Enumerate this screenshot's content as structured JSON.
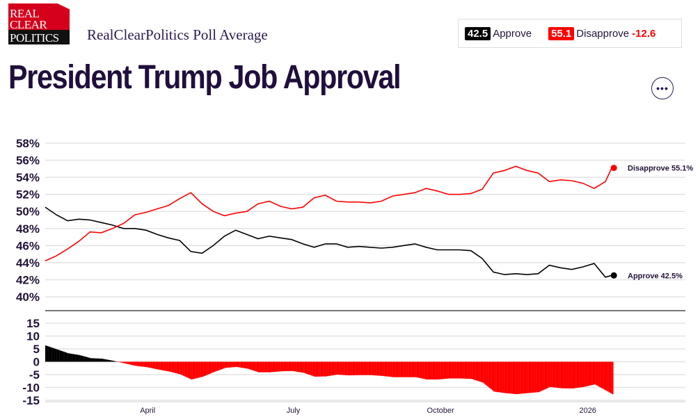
{
  "header": {
    "logo_text": [
      "REAL",
      "CLEAR",
      "POLITICS"
    ],
    "subtitle": "RealClearPolitics Poll Average",
    "title": "President Trump Job Approval",
    "more_button": "•••"
  },
  "legend": {
    "approve_value": "42.5",
    "approve_label": "Approve",
    "disapprove_value": "55.1",
    "disapprove_label": "Disapprove",
    "spread": "-12.6"
  },
  "colors": {
    "approve": "#000000",
    "disapprove": "#ff0000",
    "text": "#221338"
  },
  "chart_data": [
    {
      "type": "line",
      "ylim": [
        40,
        58
      ],
      "yticks": [
        "58%",
        "56%",
        "54%",
        "52%",
        "50%",
        "48%",
        "46%",
        "44%",
        "42%",
        "40%"
      ],
      "ytick_values": [
        58,
        56,
        54,
        52,
        50,
        48,
        46,
        44,
        42,
        40
      ],
      "grid": true,
      "x": [
        "2025-01-27",
        "2025-02-03",
        "2025-02-10",
        "2025-02-17",
        "2025-02-24",
        "2025-03-03",
        "2025-03-10",
        "2025-03-17",
        "2025-03-24",
        "2025-03-31",
        "2025-04-07",
        "2025-04-14",
        "2025-04-21",
        "2025-04-28",
        "2025-05-05",
        "2025-05-12",
        "2025-05-19",
        "2025-05-26",
        "2025-06-02",
        "2025-06-09",
        "2025-06-16",
        "2025-06-23",
        "2025-06-30",
        "2025-07-07",
        "2025-07-14",
        "2025-07-21",
        "2025-07-28",
        "2025-08-04",
        "2025-08-11",
        "2025-08-18",
        "2025-08-25",
        "2025-09-01",
        "2025-09-08",
        "2025-09-15",
        "2025-09-22",
        "2025-09-29",
        "2025-10-06",
        "2025-10-13",
        "2025-10-20",
        "2025-10-27",
        "2025-11-03",
        "2025-11-10",
        "2025-11-17",
        "2025-11-24",
        "2025-12-01",
        "2025-12-08",
        "2025-12-15",
        "2025-12-22",
        "2025-12-29",
        "2026-01-05",
        "2026-01-12",
        "2026-01-16"
      ],
      "series": [
        {
          "name": "Approve",
          "end_label": "Approve 42.5%",
          "color": "#000000",
          "values": [
            50.5,
            49.6,
            48.9,
            49.1,
            49.0,
            48.7,
            48.4,
            48.0,
            48.0,
            47.8,
            47.3,
            46.9,
            46.6,
            45.3,
            45.1,
            46.0,
            47.1,
            47.8,
            47.3,
            46.8,
            47.1,
            46.9,
            46.7,
            46.2,
            45.8,
            46.2,
            46.2,
            45.8,
            45.9,
            45.8,
            45.7,
            45.8,
            46.0,
            46.2,
            45.8,
            45.5,
            45.5,
            45.5,
            45.4,
            44.5,
            42.9,
            42.6,
            42.7,
            42.6,
            42.7,
            43.7,
            43.4,
            43.2,
            43.5,
            43.9,
            42.3,
            42.5
          ]
        },
        {
          "name": "Disapprove",
          "end_label": "Disapprove 55.1%",
          "color": "#ff0000",
          "values": [
            44.2,
            44.8,
            45.6,
            46.5,
            47.6,
            47.5,
            48.0,
            48.6,
            49.6,
            49.9,
            50.3,
            50.7,
            51.5,
            52.2,
            50.9,
            50.0,
            49.5,
            49.8,
            50.0,
            50.9,
            51.2,
            50.6,
            50.3,
            50.5,
            51.6,
            51.9,
            51.2,
            51.1,
            51.1,
            51.0,
            51.2,
            51.8,
            52.0,
            52.2,
            52.7,
            52.4,
            52.0,
            52.0,
            52.1,
            52.6,
            54.5,
            54.8,
            55.3,
            54.8,
            54.5,
            53.5,
            53.7,
            53.6,
            53.3,
            52.7,
            53.5,
            55.1
          ]
        }
      ],
      "xlim": [
        "2025-01-27",
        "2026-03-03"
      ]
    },
    {
      "type": "bar",
      "ylim": [
        -15,
        15
      ],
      "yticks": [
        "15",
        "10",
        "5",
        "0",
        "-5",
        "-10",
        "-15"
      ],
      "ytick_values": [
        15,
        10,
        5,
        0,
        -5,
        -10,
        -15
      ],
      "xticks": [
        "April",
        "July",
        "October",
        "2026"
      ],
      "xtick_dates": [
        "2025-04-01",
        "2025-07-01",
        "2025-10-01",
        "2026-01-01"
      ],
      "grid": true,
      "values_rule": "Approve minus Disapprove, daily"
    }
  ]
}
